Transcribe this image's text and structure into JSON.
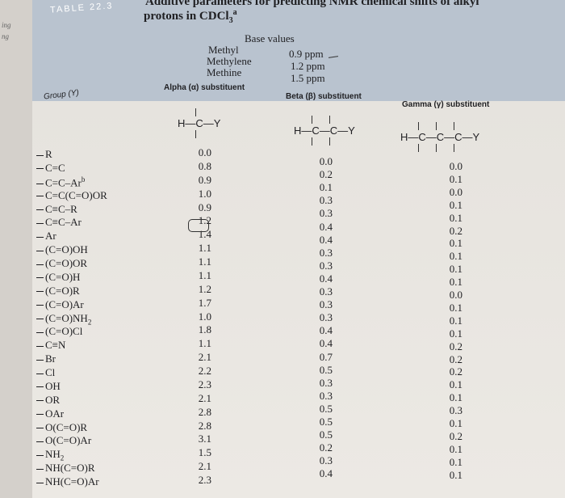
{
  "table": {
    "label": "TABLE",
    "number": "22.3",
    "title_line1": "Additive parameters for predicting NMR chemical shifts of alkyl",
    "title_line2": "protons in CDCl",
    "title_sub": "3",
    "title_sup": "a"
  },
  "margin_text": [
    "ing",
    "ng"
  ],
  "base_values": {
    "heading": "Base values",
    "rows": [
      {
        "name": "Methyl",
        "value": "0.9 ppm"
      },
      {
        "name": "Methylene",
        "value": "1.2 ppm"
      },
      {
        "name": "Methine",
        "value": "1.5 ppm"
      }
    ]
  },
  "columns": {
    "group": "Group (Y)",
    "alpha": "Alpha (α) substituent",
    "beta": "Beta (β) substituent",
    "gamma": "Gamma (γ) substituent"
  },
  "structures": {
    "alpha": "H—C—Y",
    "beta": "H—C—C—Y",
    "gamma": "H—C—C—C—Y"
  },
  "rows": [
    {
      "group": "R",
      "alpha": "0.0",
      "beta": "0.0",
      "gamma": "0.0"
    },
    {
      "group": "C=C",
      "alpha": "0.8",
      "beta": "0.2",
      "gamma": "0.1"
    },
    {
      "group": "C=C–Ar",
      "sup": "b",
      "alpha": "0.9",
      "beta": "0.1",
      "gamma": "0.0"
    },
    {
      "group": "C=C(C=O)OR",
      "alpha": "1.0",
      "beta": "0.3",
      "gamma": "0.1"
    },
    {
      "group": "C≡C–R",
      "alpha": "0.9",
      "beta": "0.3",
      "gamma": "0.1"
    },
    {
      "group": "C≡C–Ar",
      "alpha": "1.2",
      "beta": "0.4",
      "gamma": "0.2"
    },
    {
      "group": "Ar",
      "alpha": "1.4",
      "beta": "0.4",
      "gamma": "0.1"
    },
    {
      "group": "(C=O)OH",
      "alpha": "1.1",
      "beta": "0.3",
      "gamma": "0.1"
    },
    {
      "group": "(C=O)OR",
      "alpha": "1.1",
      "beta": "0.3",
      "gamma": "0.1"
    },
    {
      "group": "(C=O)H",
      "alpha": "1.1",
      "beta": "0.4",
      "gamma": "0.1"
    },
    {
      "group": "(C=O)R",
      "alpha": "1.2",
      "beta": "0.3",
      "gamma": "0.0"
    },
    {
      "group": "(C=O)Ar",
      "alpha": "1.7",
      "beta": "0.3",
      "gamma": "0.1"
    },
    {
      "group": "(C=O)NH",
      "sub": "2",
      "alpha": "1.0",
      "beta": "0.3",
      "gamma": "0.1"
    },
    {
      "group": "(C=O)Cl",
      "alpha": "1.8",
      "beta": "0.4",
      "gamma": "0.1"
    },
    {
      "group": "C≡N",
      "alpha": "1.1",
      "beta": "0.4",
      "gamma": "0.2"
    },
    {
      "group": "Br",
      "alpha": "2.1",
      "beta": "0.7",
      "gamma": "0.2"
    },
    {
      "group": "Cl",
      "alpha": "2.2",
      "beta": "0.5",
      "gamma": "0.2"
    },
    {
      "group": "OH",
      "alpha": "2.3",
      "beta": "0.3",
      "gamma": "0.1"
    },
    {
      "group": "OR",
      "alpha": "2.1",
      "beta": "0.3",
      "gamma": "0.1"
    },
    {
      "group": "OAr",
      "alpha": "2.8",
      "beta": "0.5",
      "gamma": "0.3"
    },
    {
      "group": "O(C=O)R",
      "alpha": "2.8",
      "beta": "0.5",
      "gamma": "0.1"
    },
    {
      "group": "O(C=O)Ar",
      "alpha": "3.1",
      "beta": "0.5",
      "gamma": "0.2"
    },
    {
      "group": "NH",
      "sub": "2",
      "alpha": "1.5",
      "beta": "0.2",
      "gamma": "0.1"
    },
    {
      "group": "NH(C=O)R",
      "alpha": "2.1",
      "beta": "0.3",
      "gamma": "0.1"
    },
    {
      "group": "NH(C=O)Ar",
      "alpha": "2.3",
      "beta": "0.4",
      "gamma": "0.1"
    }
  ]
}
